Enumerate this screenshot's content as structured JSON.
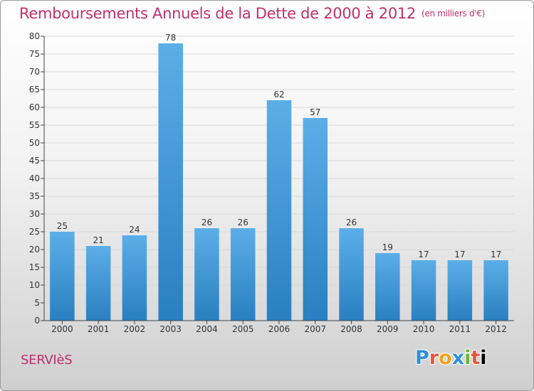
{
  "header": {
    "title": "Remboursements Annuels de la Dette de 2000 à 2012",
    "unit": "(en milliers d'€)"
  },
  "footer": {
    "town": "SERVIèS",
    "brand": "Proxiti"
  },
  "colors": {
    "title": "#c0306a",
    "bar_light": "#5caee8",
    "bar_dark": "#2a7fc0",
    "axis": "#444444",
    "grid": "#d8d8d8"
  },
  "chart_data": {
    "type": "bar",
    "categories": [
      "2000",
      "2001",
      "2002",
      "2003",
      "2004",
      "2005",
      "2006",
      "2007",
      "2008",
      "2009",
      "2010",
      "2011",
      "2012"
    ],
    "values": [
      25,
      21,
      24,
      78,
      26,
      26,
      62,
      57,
      26,
      19,
      17,
      17,
      17
    ],
    "title": "Remboursements Annuels de la Dette de 2000 à 2012",
    "xlabel": "",
    "ylabel": "",
    "ylim": [
      0,
      80
    ],
    "ytick_step": 5,
    "grid": true
  }
}
